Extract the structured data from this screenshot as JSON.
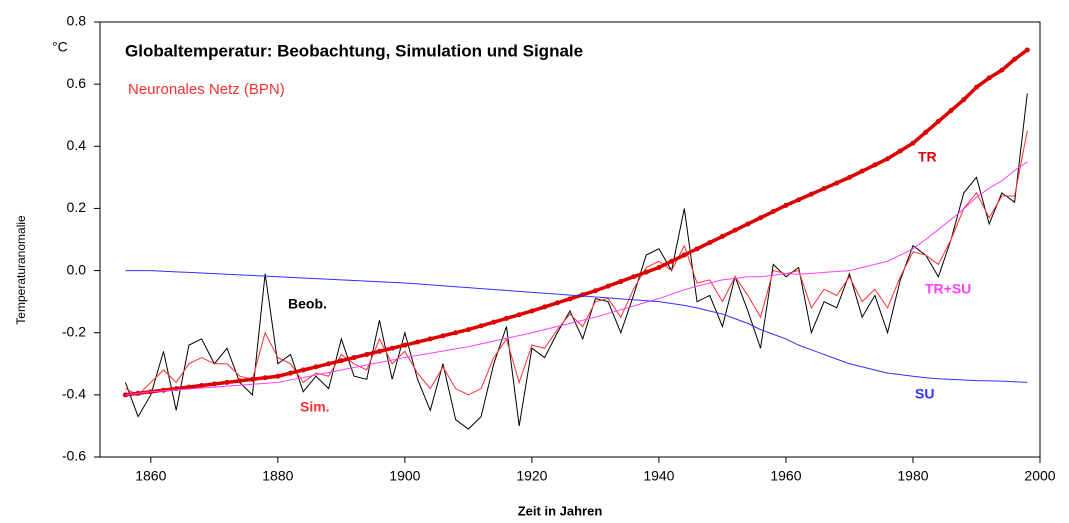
{
  "chart_data": {
    "type": "line",
    "title": "Globaltemperatur: Beobachtung, Simulation und Signale",
    "subtitle": "Neuronales Netz (BPN)",
    "unit": "°C",
    "y_label": "Temperaturanomalie",
    "x_label": "Zeit in Jahren",
    "x": [
      1856,
      1858,
      1860,
      1862,
      1864,
      1866,
      1868,
      1870,
      1872,
      1874,
      1876,
      1878,
      1880,
      1882,
      1884,
      1886,
      1888,
      1890,
      1892,
      1894,
      1896,
      1898,
      1900,
      1902,
      1904,
      1906,
      1908,
      1910,
      1912,
      1914,
      1916,
      1918,
      1920,
      1922,
      1924,
      1926,
      1928,
      1930,
      1932,
      1934,
      1936,
      1938,
      1940,
      1942,
      1944,
      1946,
      1948,
      1950,
      1952,
      1954,
      1956,
      1958,
      1960,
      1962,
      1964,
      1966,
      1968,
      1970,
      1972,
      1974,
      1976,
      1978,
      1980,
      1982,
      1984,
      1986,
      1988,
      1990,
      1992,
      1994,
      1996,
      1998
    ],
    "series": [
      {
        "name": "Beob.",
        "color": "#000000",
        "values": [
          -0.36,
          -0.47,
          -0.4,
          -0.26,
          -0.45,
          -0.24,
          -0.22,
          -0.3,
          -0.25,
          -0.36,
          -0.4,
          -0.01,
          -0.3,
          -0.27,
          -0.39,
          -0.34,
          -0.38,
          -0.22,
          -0.34,
          -0.35,
          -0.16,
          -0.35,
          -0.2,
          -0.35,
          -0.45,
          -0.3,
          -0.48,
          -0.51,
          -0.47,
          -0.3,
          -0.18,
          -0.5,
          -0.25,
          -0.28,
          -0.2,
          -0.13,
          -0.22,
          -0.09,
          -0.1,
          -0.2,
          -0.08,
          0.05,
          0.07,
          0.0,
          0.2,
          -0.1,
          -0.08,
          -0.18,
          -0.02,
          -0.13,
          -0.25,
          0.02,
          -0.02,
          0.01,
          -0.2,
          -0.1,
          -0.12,
          -0.01,
          -0.15,
          -0.08,
          -0.2,
          -0.03,
          0.08,
          0.05,
          -0.02,
          0.1,
          0.25,
          0.3,
          0.15,
          0.25,
          0.22,
          0.57
        ]
      },
      {
        "name": "Sim.",
        "color": "#ff3030",
        "values": [
          -0.38,
          -0.4,
          -0.36,
          -0.32,
          -0.36,
          -0.3,
          -0.28,
          -0.3,
          -0.3,
          -0.34,
          -0.35,
          -0.2,
          -0.28,
          -0.3,
          -0.36,
          -0.33,
          -0.34,
          -0.27,
          -0.3,
          -0.32,
          -0.22,
          -0.3,
          -0.26,
          -0.33,
          -0.38,
          -0.31,
          -0.38,
          -0.4,
          -0.38,
          -0.28,
          -0.22,
          -0.36,
          -0.24,
          -0.25,
          -0.19,
          -0.14,
          -0.18,
          -0.1,
          -0.09,
          -0.15,
          -0.06,
          0.01,
          0.03,
          0.0,
          0.08,
          -0.04,
          -0.03,
          -0.1,
          -0.02,
          -0.08,
          -0.15,
          0.0,
          -0.01,
          0.0,
          -0.12,
          -0.06,
          -0.08,
          -0.02,
          -0.1,
          -0.06,
          -0.12,
          -0.02,
          0.06,
          0.05,
          0.02,
          0.1,
          0.2,
          0.25,
          0.17,
          0.24,
          0.24,
          0.45
        ]
      },
      {
        "name": "TR",
        "color": "#dd0000",
        "markers": true,
        "values": [
          -0.4,
          -0.395,
          -0.39,
          -0.385,
          -0.38,
          -0.375,
          -0.37,
          -0.365,
          -0.36,
          -0.355,
          -0.35,
          -0.345,
          -0.34,
          -0.33,
          -0.32,
          -0.31,
          -0.3,
          -0.29,
          -0.28,
          -0.27,
          -0.26,
          -0.25,
          -0.24,
          -0.23,
          -0.22,
          -0.21,
          -0.2,
          -0.19,
          -0.178,
          -0.166,
          -0.154,
          -0.142,
          -0.13,
          -0.117,
          -0.104,
          -0.091,
          -0.078,
          -0.065,
          -0.05,
          -0.035,
          -0.02,
          -0.005,
          0.01,
          0.03,
          0.05,
          0.07,
          0.09,
          0.11,
          0.13,
          0.15,
          0.17,
          0.19,
          0.21,
          0.228,
          0.246,
          0.264,
          0.282,
          0.3,
          0.32,
          0.34,
          0.36,
          0.385,
          0.41,
          0.445,
          0.48,
          0.515,
          0.55,
          0.59,
          0.62,
          0.645,
          0.68,
          0.71
        ]
      },
      {
        "name": "TR+SU",
        "color": "#ff40ff",
        "values": [
          -0.4,
          -0.395,
          -0.39,
          -0.387,
          -0.384,
          -0.381,
          -0.378,
          -0.375,
          -0.372,
          -0.369,
          -0.366,
          -0.363,
          -0.36,
          -0.352,
          -0.344,
          -0.336,
          -0.328,
          -0.32,
          -0.312,
          -0.304,
          -0.296,
          -0.288,
          -0.28,
          -0.273,
          -0.266,
          -0.259,
          -0.252,
          -0.245,
          -0.236,
          -0.227,
          -0.218,
          -0.209,
          -0.2,
          -0.19,
          -0.18,
          -0.17,
          -0.16,
          -0.15,
          -0.138,
          -0.126,
          -0.114,
          -0.102,
          -0.09,
          -0.076,
          -0.062,
          -0.05,
          -0.04,
          -0.03,
          -0.025,
          -0.02,
          -0.02,
          -0.015,
          -0.01,
          -0.012,
          -0.009,
          -0.006,
          -0.003,
          0.0,
          0.01,
          0.02,
          0.03,
          0.05,
          0.07,
          0.1,
          0.132,
          0.165,
          0.198,
          0.236,
          0.265,
          0.289,
          0.322,
          0.35
        ]
      },
      {
        "name": "SU",
        "color": "#3030ff",
        "values": [
          0,
          0,
          0,
          -0.002,
          -0.004,
          -0.006,
          -0.008,
          -0.01,
          -0.012,
          -0.014,
          -0.016,
          -0.018,
          -0.02,
          -0.022,
          -0.024,
          -0.026,
          -0.028,
          -0.03,
          -0.032,
          -0.034,
          -0.036,
          -0.038,
          -0.04,
          -0.043,
          -0.046,
          -0.049,
          -0.052,
          -0.055,
          -0.058,
          -0.061,
          -0.064,
          -0.067,
          -0.07,
          -0.073,
          -0.076,
          -0.079,
          -0.082,
          -0.085,
          -0.088,
          -0.091,
          -0.094,
          -0.097,
          -0.1,
          -0.106,
          -0.112,
          -0.12,
          -0.13,
          -0.14,
          -0.155,
          -0.17,
          -0.19,
          -0.205,
          -0.22,
          -0.24,
          -0.255,
          -0.27,
          -0.285,
          -0.3,
          -0.31,
          -0.32,
          -0.33,
          -0.335,
          -0.34,
          -0.345,
          -0.348,
          -0.35,
          -0.352,
          -0.354,
          -0.355,
          -0.356,
          -0.358,
          -0.36
        ]
      }
    ],
    "xlim": [
      1852,
      2000
    ],
    "xticks": [
      1860,
      1880,
      1900,
      1920,
      1940,
      1960,
      1980,
      2000
    ],
    "ylim": [
      -0.6,
      0.8
    ],
    "yticks": [
      -0.6,
      -0.4,
      -0.2,
      {
        "value": 0,
        "label": "0.0"
      },
      0.2,
      0.4,
      0.6,
      0.8
    ],
    "grid": false
  }
}
